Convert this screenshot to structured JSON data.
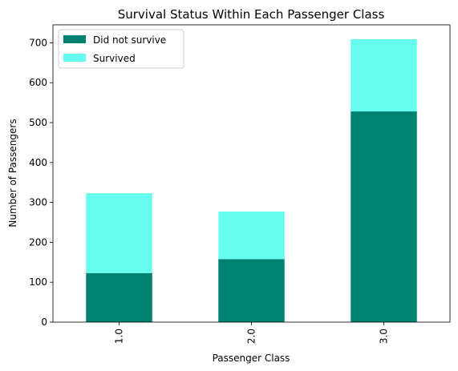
{
  "chart_data": {
    "type": "bar",
    "stacked": true,
    "title": "Survival Status Within Each Passenger Class",
    "xlabel": "Passenger Class",
    "ylabel": "Number of Passengers",
    "categories": [
      "1.0",
      "2.0",
      "3.0"
    ],
    "series": [
      {
        "name": "Did not survive",
        "values": [
          123,
          158,
          528
        ],
        "color": "#008272"
      },
      {
        "name": "Survived",
        "values": [
          200,
          119,
          181
        ],
        "color": "#66fdee"
      }
    ],
    "ylim": [
      0,
      745
    ],
    "yticks": [
      0,
      100,
      200,
      300,
      400,
      500,
      600,
      700
    ],
    "legend_position": "top-left",
    "grid": false,
    "xtick_rotation": 90
  }
}
